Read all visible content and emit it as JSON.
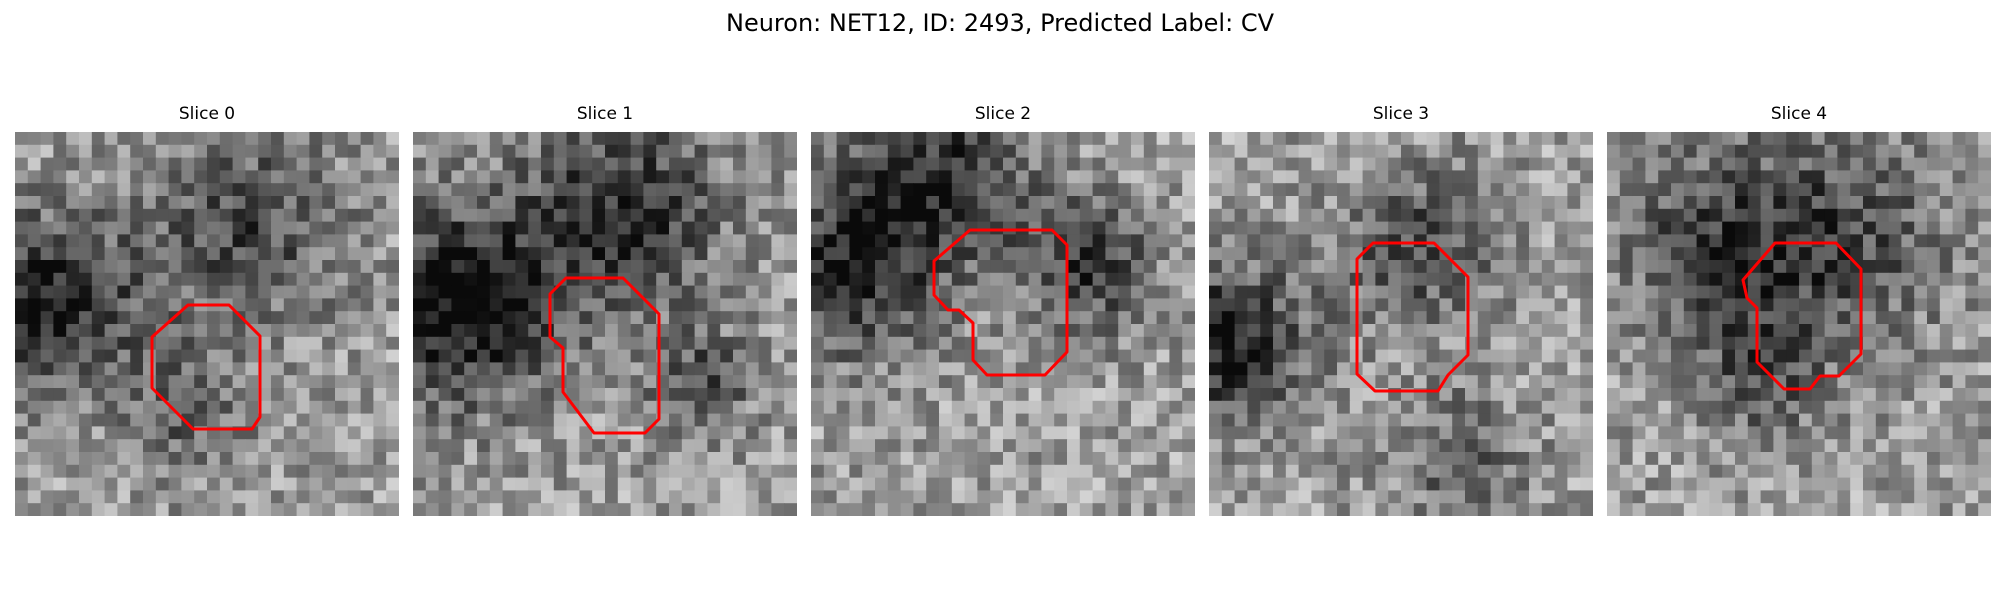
{
  "figure": {
    "title": "Neuron: NET12, ID: 2493, Predicted Label: CV"
  },
  "panels": [
    {
      "title": "Slice 0"
    },
    {
      "title": "Slice 1"
    },
    {
      "title": "Slice 2"
    },
    {
      "title": "Slice 3"
    },
    {
      "title": "Slice 4"
    }
  ],
  "style": {
    "outline_color": "#ff0000",
    "image_colormap": "grayscale"
  }
}
